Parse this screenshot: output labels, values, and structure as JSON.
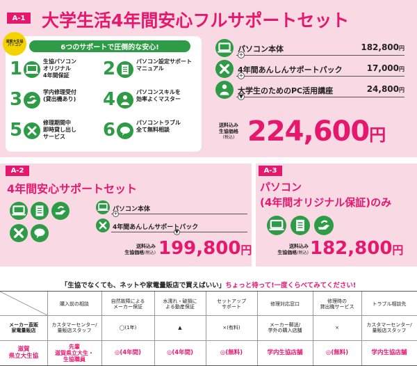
{
  "a1": {
    "tag": "A-1",
    "title": "大学生活4年間安心フルサポートセット",
    "ribbon": "滋賀大生協パソコン",
    "support_banner": "6つのサポートで圧倒的な安心!",
    "supports": [
      {
        "num": "1",
        "text": "生協パソコン\nオリジナル\n4年間保証"
      },
      {
        "num": "2",
        "text": "パソコン設定サポート\nマニュアル"
      },
      {
        "num": "3",
        "text": "学内修理受付\n(貸出機あり)"
      },
      {
        "num": "4",
        "text": "パソコンスキルを\n効率よくマスター"
      },
      {
        "num": "5",
        "text": "修理期間中\n即時貸し出し\nサービス"
      },
      {
        "num": "6",
        "text": "パソコントラブル\n全て無料相談"
      }
    ],
    "items": [
      {
        "name": "パソコン本体",
        "price": "182,800",
        "unit": "円"
      },
      {
        "name": "4年間あんしんサポートパック",
        "price": "17,000",
        "unit": "円"
      },
      {
        "name": "大学生のためのPC活用講座",
        "price": "24,800",
        "unit": "円"
      }
    ],
    "total_label": "送料込み\n生協価格",
    "tax_label": "(税込)",
    "total": "224,600",
    "total_unit": "円"
  },
  "a2": {
    "tag": "A-2",
    "title": "4年間安心サポートセット",
    "items": [
      {
        "name": "パソコン本体",
        "price": "182,800",
        "unit": "円"
      },
      {
        "name": "4年間あんしんサポートパック",
        "price": "17,000",
        "unit": "円"
      }
    ],
    "total_label1": "送料込み",
    "total_label2": "生協価格",
    "tax_label": "(税込)",
    "total": "199,800",
    "total_unit": "円"
  },
  "a3": {
    "tag": "A-3",
    "title1": "パソコン",
    "title2": "(4年間オリジナル保証)のみ",
    "total_label1": "送料込み",
    "total_label2": "生協価格",
    "tax_label": "(税込)",
    "total": "182,800",
    "total_unit": "円"
  },
  "compare": {
    "headline_black": "「生協でなくても、ネットや家電量販店で買えばいい」",
    "headline_pink": "ちょっと待って!一度くらべてみてください!",
    "headers": [
      "購入前の相談",
      "自然故障による\nメーカー保証",
      "水濡れ・破損に\nよる動産保証",
      "セットアップ\nサポート",
      "修理対応窓口",
      "修理時の\n貸出機サービス",
      "トラブル相談先"
    ],
    "row1_label": "メーカー直販\n家電量販店",
    "row1": [
      "カスタマーセンター/\n量販店スタッフ",
      "◯(1年)",
      "▲",
      "×(有料)",
      "メーカー郵送/\n学外の購入店舗",
      "×",
      "カスタマーセンター/\n量販店スタッフ"
    ],
    "row2_label": "滋賀\n県立大生協",
    "row2": [
      "先輩\n滋賀県立大生・\n生協職員",
      "◎(4年間)",
      "◎(4年間)",
      "◎(無料)",
      "学内生協店舗",
      "◎(無料)",
      "学内生協店舗"
    ]
  },
  "colors": {
    "accent": "#e6186e",
    "green": "#2e9b46",
    "card": "#f9d9e3"
  }
}
